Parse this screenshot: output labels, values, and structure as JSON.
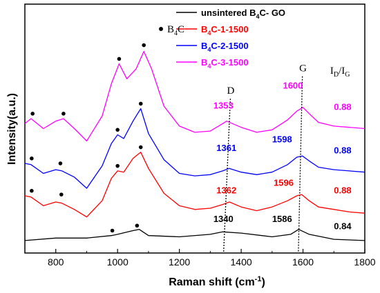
{
  "chart_data": {
    "type": "line",
    "xlabel": "Raman shift (cm",
    "xlabel_sup": "-1",
    "xlabel_close": ")",
    "ylabel": "Intensity(a.u.)",
    "xlim": [
      700,
      1800
    ],
    "ylim": [
      0,
      100
    ],
    "x_ticks": [
      800,
      1000,
      1200,
      1400,
      1600,
      1800
    ],
    "x_tick_labels": [
      "800",
      "1000",
      "1200",
      "1400",
      "1600",
      "1800"
    ],
    "legend_position": "top-right",
    "series": [
      {
        "name": "unsintered B4C- GO",
        "color": "#000000",
        "x": [
          700,
          800,
          900,
          980,
          1000,
          1050,
          1070,
          1100,
          1200,
          1300,
          1340,
          1400,
          1500,
          1560,
          1586,
          1620,
          1700,
          1800
        ],
        "y": [
          5,
          6,
          6,
          7,
          7.5,
          9,
          9.5,
          7,
          6.5,
          7.5,
          8.5,
          8,
          6.5,
          7.5,
          9.5,
          7.5,
          5.5,
          5
        ]
      },
      {
        "name": "B4C-1-1500",
        "color": "#ff0000",
        "x": [
          700,
          720,
          760,
          800,
          820,
          860,
          900,
          950,
          980,
          1000,
          1020,
          1050,
          1075,
          1100,
          1150,
          1200,
          1250,
          1300,
          1340,
          1362,
          1400,
          1450,
          1500,
          1550,
          1580,
          1596,
          1620,
          1650,
          1700,
          1750,
          1800
        ],
        "y": [
          23,
          22.5,
          19,
          20.5,
          20,
          17.5,
          14.5,
          21,
          30,
          33,
          32.5,
          38,
          40.5,
          34,
          24,
          19,
          17.5,
          18,
          19.5,
          20.5,
          18.5,
          17,
          18.5,
          21,
          23,
          23.5,
          21,
          18.5,
          17.5,
          16.5,
          16
        ]
      },
      {
        "name": "B4C-2-1500",
        "color": "#0000ff",
        "x": [
          700,
          720,
          760,
          800,
          820,
          860,
          900,
          950,
          980,
          1000,
          1020,
          1050,
          1075,
          1100,
          1150,
          1200,
          1250,
          1300,
          1340,
          1361,
          1400,
          1450,
          1500,
          1550,
          1580,
          1598,
          1620,
          1650,
          1700,
          1750,
          1800
        ],
        "y": [
          36,
          35.5,
          32,
          33.5,
          33,
          30.5,
          26,
          35,
          44,
          47.5,
          46,
          53,
          58,
          48,
          37.5,
          32,
          31,
          31.5,
          33,
          34,
          32.5,
          31.5,
          32.5,
          35.5,
          38.5,
          39,
          37,
          34.5,
          33.5,
          33,
          32.5
        ]
      },
      {
        "name": "B4C-3-1500",
        "color": "#ff00ff",
        "x": [
          700,
          720,
          760,
          800,
          825,
          860,
          900,
          950,
          980,
          1005,
          1030,
          1060,
          1085,
          1110,
          1150,
          1200,
          1250,
          1300,
          1340,
          1353,
          1400,
          1450,
          1500,
          1550,
          1580,
          1600,
          1620,
          1650,
          1700,
          1750,
          1800
        ],
        "y": [
          52,
          54,
          50,
          53,
          54,
          50,
          45,
          55,
          68,
          76,
          70,
          74,
          81,
          74,
          59,
          51,
          48.5,
          49,
          52,
          53,
          50.5,
          48.5,
          49.5,
          53.5,
          57,
          58.5,
          56,
          52.5,
          51,
          50.5,
          50
        ]
      }
    ],
    "markers": [
      {
        "x": 983,
        "y": 9
      },
      {
        "x": 1063,
        "y": 11
      },
      {
        "x": 722,
        "y": 25
      },
      {
        "x": 818,
        "y": 23.5
      },
      {
        "x": 1000,
        "y": 35
      },
      {
        "x": 1075,
        "y": 42.5
      },
      {
        "x": 722,
        "y": 38
      },
      {
        "x": 815,
        "y": 36
      },
      {
        "x": 1000,
        "y": 49.5
      },
      {
        "x": 1075,
        "y": 60
      },
      {
        "x": 725,
        "y": 56
      },
      {
        "x": 825,
        "y": 56
      },
      {
        "x": 1005,
        "y": 78
      },
      {
        "x": 1085,
        "y": 83.5
      }
    ],
    "legend_marker_label": "B4C",
    "peak_labels": [
      {
        "text": "1340",
        "x": 1310,
        "y": 12.5,
        "color": "#000000"
      },
      {
        "text": "1586",
        "x": 1500,
        "y": 12.5,
        "color": "#000000"
      },
      {
        "text": "0.84",
        "x": 1700,
        "y": 9.5,
        "color": "#000000"
      },
      {
        "text": "1362",
        "x": 1320,
        "y": 24,
        "color": "#ff0000"
      },
      {
        "text": "1596",
        "x": 1505,
        "y": 27,
        "color": "#ff0000"
      },
      {
        "text": "0.88",
        "x": 1700,
        "y": 24,
        "color": "#ff0000"
      },
      {
        "text": "1361",
        "x": 1320,
        "y": 41,
        "color": "#0000ff"
      },
      {
        "text": "1598",
        "x": 1500,
        "y": 44.5,
        "color": "#0000ff"
      },
      {
        "text": "0.88",
        "x": 1700,
        "y": 40,
        "color": "#0000ff"
      },
      {
        "text": "1353",
        "x": 1310,
        "y": 58,
        "color": "#ff00ff"
      },
      {
        "text": "1600",
        "x": 1535,
        "y": 66,
        "color": "#ff00ff"
      },
      {
        "text": "0.88",
        "x": 1700,
        "y": 57.5,
        "color": "#ff00ff"
      }
    ],
    "band_labels": {
      "D": "D",
      "G": "G",
      "ratio_main": "I",
      "ratio_sub1": "D",
      "ratio_slash": "/I",
      "ratio_sub2": "G"
    },
    "d_line": {
      "x_start": 1365,
      "y_start": 62,
      "x_end": 1343,
      "y_end": 0
    },
    "g_line": {
      "x_start": 1598,
      "y_start": 71,
      "x_end": 1585,
      "y_end": 0
    }
  }
}
